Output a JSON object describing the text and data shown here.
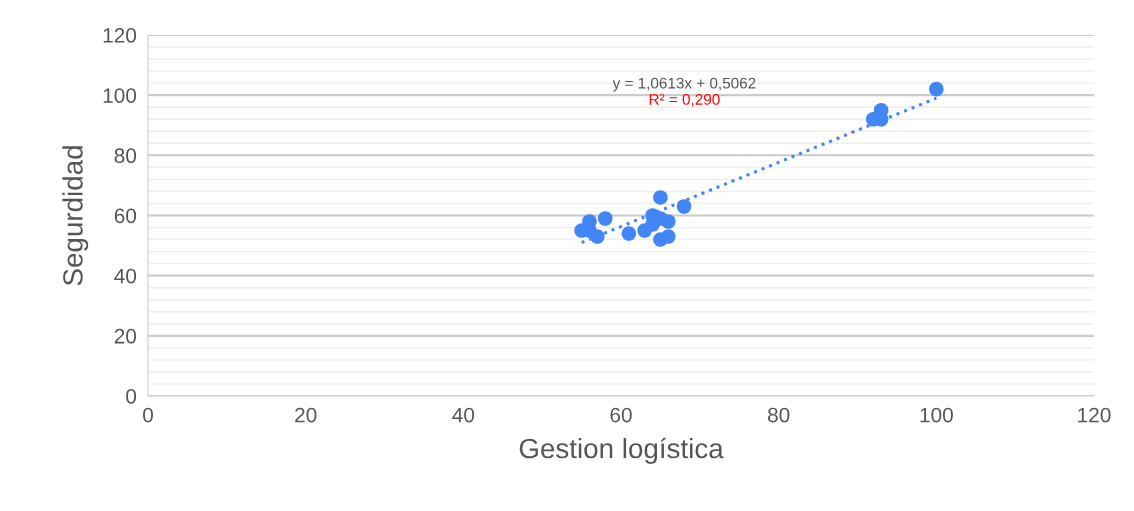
{
  "chart_data": {
    "type": "scatter",
    "xlabel": "Gestion logística",
    "ylabel": "Segurdidad",
    "xlim": [
      0,
      120
    ],
    "xticks": [
      0,
      20,
      40,
      60,
      80,
      100,
      120
    ],
    "ylim": [
      0,
      120
    ],
    "yticks": [
      0,
      20,
      40,
      60,
      80,
      100,
      120
    ],
    "grid": "y",
    "series": [
      {
        "color": "#4285f4",
        "marker": "circle",
        "x": [
          55,
          56,
          57,
          56,
          58,
          61,
          63,
          64,
          64,
          65,
          65,
          66,
          65,
          66,
          68,
          92,
          93,
          93,
          100
        ],
        "values": [
          55,
          58,
          53,
          55,
          59,
          54,
          55,
          60,
          57,
          59,
          66,
          58,
          52,
          53,
          63,
          92,
          95,
          92,
          102
        ]
      },
      {
        "type": "line",
        "color": "#4285f4",
        "line_style": "dotted",
        "x": [
          55,
          100
        ],
        "values": [
          51,
          99
        ]
      }
    ],
    "annotations": [
      "y = 1,0613x + 0,5062",
      "R² = 0,290"
    ]
  }
}
